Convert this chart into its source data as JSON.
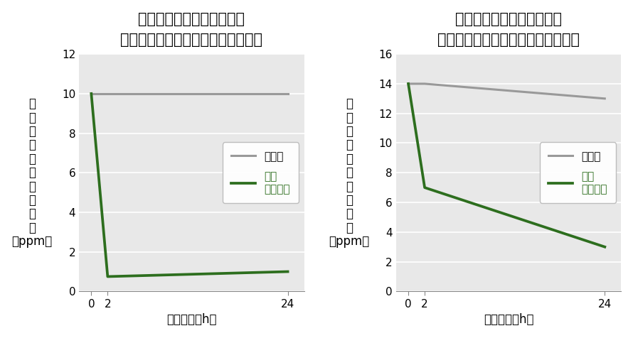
{
  "chart1": {
    "title": "ホルムアルデヒド吸着実験",
    "subtitle": "（柿渋自然塗料塗布フローリング）",
    "ylabel_chars": [
      "ホ",
      "ル",
      "ム",
      "ア",
      "ル",
      "デ",
      "ヒ",
      "ド",
      "濃",
      "度"
    ],
    "ylabel_unit": "（ppm）",
    "xlabel": "経過時間（h）",
    "x": [
      0,
      2,
      24
    ],
    "gray_line": [
      10.0,
      10.0,
      10.0
    ],
    "green_line": [
      10.0,
      0.75,
      1.0
    ],
    "ylim": [
      0,
      12
    ],
    "yticks": [
      0,
      2,
      4,
      6,
      8,
      10,
      12
    ],
    "xticks": [
      0,
      2,
      24
    ],
    "legend_label1": "無塗装",
    "legend_label2": "柿渋\n自然塗料",
    "gray_color": "#999999",
    "green_color": "#2d6e1e",
    "bg_color": "#e8e8e8"
  },
  "chart2": {
    "title": "アセトアルデヒド吸着実験",
    "subtitle": "（柿渋自然塗料塗布フローリング）",
    "ylabel_chars": [
      "ア",
      "セ",
      "ト",
      "ア",
      "ル",
      "デ",
      "ヒ",
      "ド",
      "濃",
      "度"
    ],
    "ylabel_unit": "（ppm）",
    "xlabel": "経過時間（h）",
    "x": [
      0,
      2,
      24
    ],
    "gray_line": [
      14.0,
      14.0,
      13.0
    ],
    "green_line": [
      14.0,
      7.0,
      3.0
    ],
    "ylim": [
      0,
      16
    ],
    "yticks": [
      0,
      2,
      4,
      6,
      8,
      10,
      12,
      14,
      16
    ],
    "xticks": [
      0,
      2,
      24
    ],
    "legend_label1": "無塗装",
    "legend_label2": "柿渋\n自然塗料",
    "gray_color": "#999999",
    "green_color": "#2d6e1e",
    "bg_color": "#e8e8e8"
  },
  "fig_bg": "#ffffff",
  "title_fontsize": 15,
  "subtitle_fontsize": 11,
  "axis_label_fontsize": 12,
  "tick_fontsize": 11,
  "legend_fontsize": 11,
  "line_width": 2.2
}
